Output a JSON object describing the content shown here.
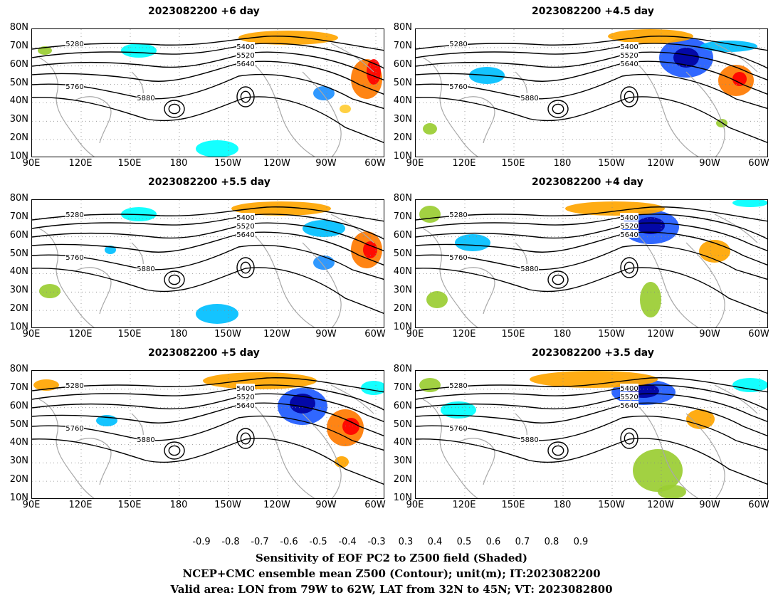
{
  "panels": [
    {
      "title": "2023082200 +6 day",
      "lead": 6
    },
    {
      "title": "2023082200 +4.5 day",
      "lead": 4.5
    },
    {
      "title": "2023082200 +5.5 day",
      "lead": 5.5
    },
    {
      "title": "2023082200 +4 day",
      "lead": 4
    },
    {
      "title": "2023082200 +5 day",
      "lead": 5
    },
    {
      "title": "2023082200 +3.5 day",
      "lead": 3.5
    }
  ],
  "lat_ticks": [
    "80N",
    "70N",
    "60N",
    "50N",
    "40N",
    "30N",
    "20N",
    "10N"
  ],
  "lon_ticks": [
    "90E",
    "120E",
    "150E",
    "180",
    "150W",
    "120W",
    "90W",
    "60W"
  ],
  "contour_labels": [
    "5280",
    "5400",
    "5520",
    "5640",
    "5760",
    "5880"
  ],
  "colorbar": {
    "ticks": [
      "-0.9",
      "-0.8",
      "-0.7",
      "-0.6",
      "-0.5",
      "-0.4",
      "-0.3",
      "0.3",
      "0.4",
      "0.5",
      "0.6",
      "0.7",
      "0.8",
      "0.9"
    ],
    "colors": [
      "#0000a0",
      "#0000ff",
      "#1e5aff",
      "#1e90ff",
      "#00bfff",
      "#00ffff",
      "#ffffff",
      "#9acd32",
      "#ffcc33",
      "#ffa500",
      "#ff7a00",
      "#ff4500",
      "#ff0000"
    ],
    "left_end_color": "#c000c0",
    "right_end_color": "#ff99cc"
  },
  "footer": {
    "line1": "Sensitivity of EOF PC2 to Z500 field (Shaded)",
    "line2": "NCEP+CMC ensemble mean Z500 (Contour); unit(m); IT:2023082200",
    "line3": "Valid area: LON from 79W to 62W, LAT from 32N to 45N; VT: 2023082800"
  }
}
